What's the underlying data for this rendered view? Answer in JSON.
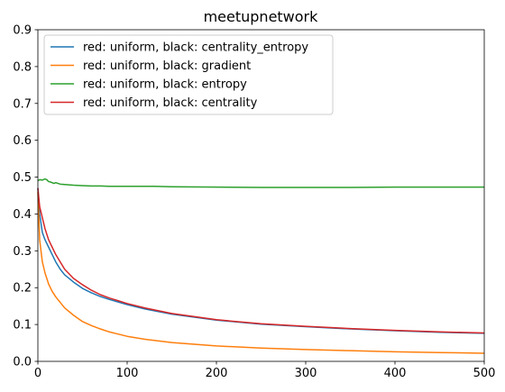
{
  "chart_data": {
    "type": "line",
    "title": "meetupnetwork",
    "xlabel": "",
    "ylabel": "",
    "xlim": [
      0,
      500
    ],
    "ylim": [
      0,
      0.9
    ],
    "xticks": [
      0,
      100,
      200,
      300,
      400,
      500
    ],
    "yticks": [
      0.0,
      0.1,
      0.2,
      0.3,
      0.4,
      0.5,
      0.6,
      0.7,
      0.8,
      0.9
    ],
    "xtick_labels": [
      "0",
      "100",
      "200",
      "300",
      "400",
      "500"
    ],
    "ytick_labels": [
      "0.0",
      "0.1",
      "0.2",
      "0.3",
      "0.4",
      "0.5",
      "0.6",
      "0.7",
      "0.8",
      "0.9"
    ],
    "grid": false,
    "legend_position": "top-left",
    "series": [
      {
        "name": "red: uniform, black: centrality_entropy",
        "color": "#1f77b4",
        "x": [
          0,
          2,
          5,
          8,
          12,
          16,
          20,
          25,
          30,
          40,
          50,
          60,
          70,
          80,
          100,
          120,
          150,
          200,
          250,
          300,
          350,
          400,
          450,
          500
        ],
        "y": [
          0.47,
          0.4,
          0.35,
          0.33,
          0.31,
          0.29,
          0.27,
          0.25,
          0.235,
          0.215,
          0.198,
          0.186,
          0.176,
          0.168,
          0.154,
          0.142,
          0.128,
          0.112,
          0.101,
          0.094,
          0.088,
          0.083,
          0.079,
          0.076
        ]
      },
      {
        "name": "red: uniform, black: gradient",
        "color": "#ff7f0e",
        "x": [
          0,
          2,
          5,
          8,
          12,
          16,
          20,
          25,
          30,
          40,
          50,
          60,
          70,
          80,
          100,
          120,
          150,
          200,
          250,
          300,
          350,
          400,
          450,
          500
        ],
        "y": [
          0.46,
          0.33,
          0.27,
          0.24,
          0.21,
          0.19,
          0.175,
          0.16,
          0.145,
          0.125,
          0.108,
          0.097,
          0.088,
          0.08,
          0.068,
          0.06,
          0.051,
          0.042,
          0.036,
          0.032,
          0.029,
          0.026,
          0.024,
          0.022
        ]
      },
      {
        "name": "red: uniform, black: entropy",
        "color": "#2ca02c",
        "x": [
          0,
          2,
          5,
          8,
          10,
          12,
          15,
          18,
          20,
          25,
          30,
          40,
          50,
          60,
          70,
          80,
          100,
          130,
          150,
          200,
          250,
          300,
          350,
          400,
          450,
          500
        ],
        "y": [
          0.49,
          0.493,
          0.492,
          0.495,
          0.493,
          0.488,
          0.486,
          0.483,
          0.485,
          0.481,
          0.48,
          0.478,
          0.477,
          0.476,
          0.476,
          0.475,
          0.475,
          0.475,
          0.474,
          0.473,
          0.472,
          0.472,
          0.472,
          0.473,
          0.473,
          0.473
        ]
      },
      {
        "name": "red: uniform, black: centrality",
        "color": "#d62728",
        "x": [
          0,
          2,
          5,
          8,
          12,
          16,
          20,
          25,
          30,
          40,
          50,
          60,
          70,
          80,
          100,
          120,
          150,
          200,
          250,
          300,
          350,
          400,
          450,
          500
        ],
        "y": [
          0.47,
          0.42,
          0.39,
          0.36,
          0.33,
          0.31,
          0.29,
          0.27,
          0.25,
          0.225,
          0.208,
          0.193,
          0.181,
          0.172,
          0.157,
          0.145,
          0.13,
          0.113,
          0.102,
          0.095,
          0.089,
          0.084,
          0.08,
          0.077
        ]
      }
    ]
  }
}
